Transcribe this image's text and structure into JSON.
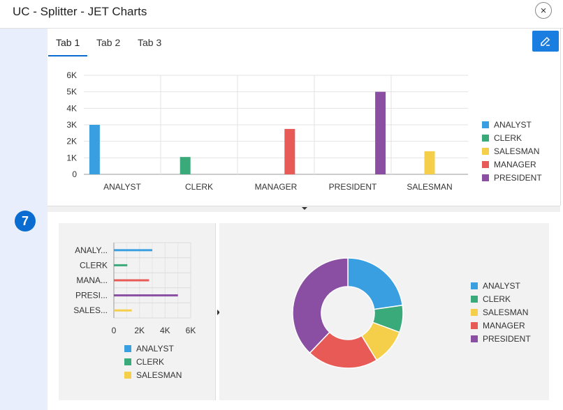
{
  "window": {
    "title": "UC - Splitter - JET Charts",
    "close_glyph": "×"
  },
  "region": {
    "badge": "7"
  },
  "tabs": [
    {
      "label": "Tab 1",
      "active": true
    },
    {
      "label": "Tab 2",
      "active": false
    },
    {
      "label": "Tab 3",
      "active": false
    }
  ],
  "colors": {
    "accent": "#0a6cd1",
    "ANALYST": "#3a9fe0",
    "CLERK": "#3aaa7a",
    "SALESMAN": "#f6cf4a",
    "MANAGER": "#e85a55",
    "PRESIDENT": "#8a4ea3"
  },
  "chart_data": [
    {
      "type": "bar",
      "name": "top-salary-bar-chart",
      "categories": [
        "ANALYST",
        "CLERK",
        "MANAGER",
        "PRESIDENT",
        "SALESMAN"
      ],
      "series": [
        {
          "name": "ANALYST",
          "values": [
            3000,
            null,
            null,
            null,
            null
          ]
        },
        {
          "name": "CLERK",
          "values": [
            null,
            1050,
            null,
            null,
            null
          ]
        },
        {
          "name": "SALESMAN",
          "values": [
            null,
            null,
            null,
            null,
            1400
          ]
        },
        {
          "name": "MANAGER",
          "values": [
            null,
            null,
            2750,
            null,
            null
          ]
        },
        {
          "name": "PRESIDENT",
          "values": [
            null,
            null,
            null,
            5000,
            null
          ]
        }
      ],
      "y_ticks": [
        "0",
        "1K",
        "2K",
        "3K",
        "4K",
        "5K",
        "6K"
      ],
      "ylim": [
        0,
        6000
      ],
      "legend": [
        "ANALYST",
        "CLERK",
        "SALESMAN",
        "MANAGER",
        "PRESIDENT"
      ],
      "legend_position": "right",
      "grid": true
    },
    {
      "type": "bar",
      "orientation": "horizontal",
      "name": "bottom-left-hbar-chart",
      "categories": [
        "ANALY...",
        "CLERK",
        "MANA...",
        "PRESI...",
        "SALES..."
      ],
      "series": [
        {
          "name": "ANALYST",
          "values": [
            3000,
            null,
            null,
            null,
            null
          ]
        },
        {
          "name": "CLERK",
          "values": [
            null,
            1050,
            null,
            null,
            null
          ]
        },
        {
          "name": "MANAGER",
          "values": [
            null,
            null,
            2750,
            null,
            null
          ]
        },
        {
          "name": "PRESIDENT",
          "values": [
            null,
            null,
            null,
            5000,
            null
          ]
        },
        {
          "name": "SALESMAN",
          "values": [
            null,
            null,
            null,
            null,
            1400
          ]
        }
      ],
      "x_ticks": [
        "0",
        "2K",
        "4K",
        "6K"
      ],
      "xlim": [
        0,
        6000
      ],
      "legend": [
        "ANALYST",
        "CLERK",
        "SALESMAN"
      ],
      "legend_position": "bottom",
      "grid": true
    },
    {
      "type": "pie",
      "donut": true,
      "name": "bottom-right-donut-chart",
      "slices": [
        {
          "label": "ANALYST",
          "value": 3000
        },
        {
          "label": "CLERK",
          "value": 1050
        },
        {
          "label": "SALESMAN",
          "value": 1400
        },
        {
          "label": "MANAGER",
          "value": 2750
        },
        {
          "label": "PRESIDENT",
          "value": 5000
        }
      ],
      "legend": [
        "ANALYST",
        "CLERK",
        "SALESMAN",
        "MANAGER",
        "PRESIDENT"
      ],
      "legend_position": "right"
    }
  ]
}
